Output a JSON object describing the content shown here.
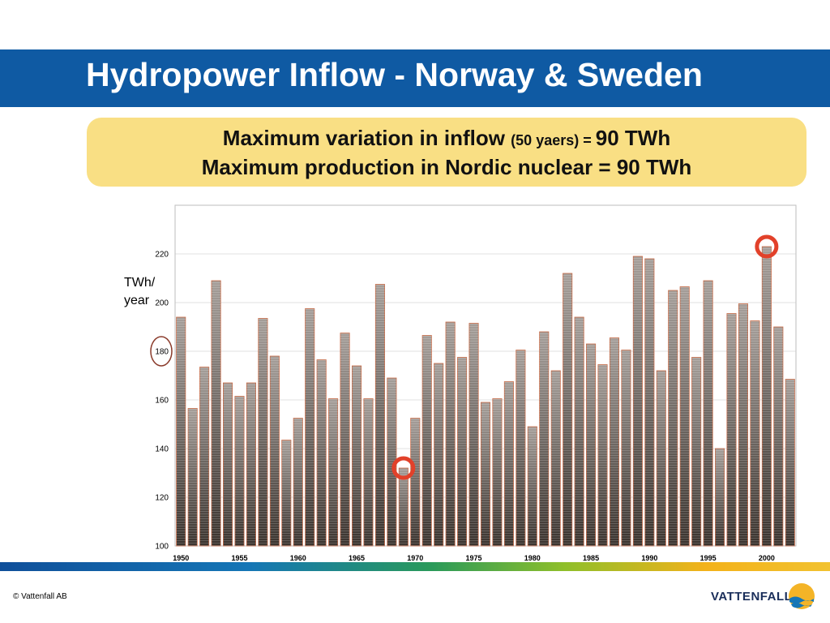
{
  "slide": {
    "title": "Hydropower Inflow - Norway & Sweden",
    "callout": {
      "line1_main": "Maximum variation in inflow ",
      "line1_small": "(50 yaers) = ",
      "line1_end": "90 TWh",
      "line2": "Maximum production in Nordic nuclear = 90 TWh"
    },
    "unit_label_1": "TWh/",
    "unit_label_2": "year",
    "copyright": "© Vattenfall AB",
    "brand": "VATTENFALL",
    "colors": {
      "title_band": "#0f5aa3",
      "callout_bg": "#f9df84",
      "bar_top": "#a59e99",
      "bar_bottom": "#3a332e",
      "bar_outline": "#c86a46",
      "highlight_circle": "#e2412a",
      "y180_marker": "#8a3a2a"
    }
  },
  "chart_data": {
    "type": "bar",
    "x": [
      1950,
      1951,
      1952,
      1953,
      1954,
      1955,
      1956,
      1957,
      1958,
      1959,
      1960,
      1961,
      1962,
      1963,
      1964,
      1965,
      1966,
      1967,
      1968,
      1969,
      1970,
      1971,
      1972,
      1973,
      1974,
      1975,
      1976,
      1977,
      1978,
      1979,
      1980,
      1981,
      1982,
      1983,
      1984,
      1985,
      1986,
      1987,
      1988,
      1989,
      1990,
      1991,
      1992,
      1993,
      1994,
      1995,
      1996,
      1997,
      1998,
      1999,
      2000,
      2001,
      2002
    ],
    "values": [
      194,
      156.5,
      173.5,
      209,
      167,
      161.5,
      167,
      193.5,
      178,
      143.5,
      152.5,
      197.5,
      176.5,
      160.5,
      187.5,
      174,
      160.5,
      207.5,
      169,
      132,
      152.5,
      186.5,
      175,
      192,
      177.5,
      191.5,
      159,
      160.5,
      167.5,
      180.5,
      149,
      188,
      172,
      212,
      194,
      183,
      174.5,
      185.5,
      180.5,
      219,
      218,
      172,
      205,
      206.5,
      177.5,
      209,
      140,
      195.5,
      199.5,
      192.5,
      223,
      190,
      168.5
    ],
    "xticks": [
      "1950",
      "1955",
      "1960",
      "1965",
      "1970",
      "1975",
      "1980",
      "1985",
      "1990",
      "1995",
      "2000"
    ],
    "yticks": [
      "100",
      "120",
      "140",
      "160",
      "180",
      "200",
      "220"
    ],
    "ylim": [
      100,
      240
    ],
    "grid": true,
    "highlights": [
      1969,
      2000
    ],
    "ylabel": "TWh/ year"
  }
}
